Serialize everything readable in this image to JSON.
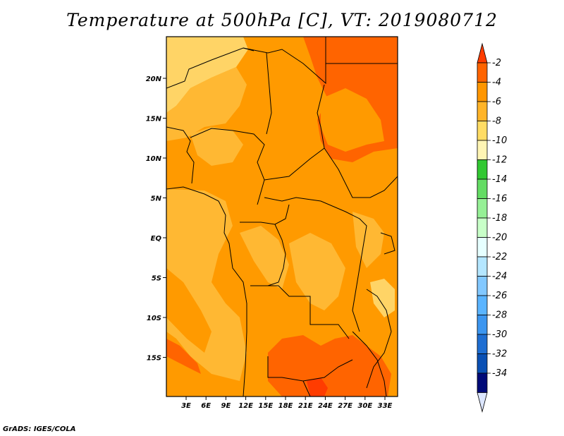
{
  "title": "Temperature at 500hPa [C], VT: 2019080712",
  "credit": "GrADS: IGES/COLA",
  "map": {
    "lon_ticks": [
      "3E",
      "6E",
      "9E",
      "12E",
      "15E",
      "18E",
      "21E",
      "24E",
      "27E",
      "30E",
      "33E"
    ],
    "lat_ticks": [
      "20N",
      "15N",
      "10N",
      "5N",
      "EQ",
      "5S",
      "10S",
      "15S"
    ],
    "colors": {
      "warm_dark": "#ff6400",
      "warm_mid": "#ff9a00",
      "warm_light": "#ffb833",
      "warm_pale": "#ffd466"
    }
  },
  "colorbar": {
    "labels": [
      "-2",
      "-4",
      "-6",
      "-8",
      "-10",
      "-12",
      "-14",
      "-16",
      "-18",
      "-20",
      "-22",
      "-24",
      "-26",
      "-28",
      "-30",
      "-32",
      "-34"
    ],
    "colors": [
      "#ff3c00",
      "#ff6400",
      "#ff9600",
      "#ffb428",
      "#ffdc64",
      "#fff5b4",
      "#32c832",
      "#64dc64",
      "#96f096",
      "#c8ffc8",
      "#e6ffff",
      "#b4e6ff",
      "#82c8ff",
      "#5ab4ff",
      "#3c96f0",
      "#1e6ed2",
      "#0a50b4",
      "#000a78",
      "#dce6ff"
    ]
  }
}
